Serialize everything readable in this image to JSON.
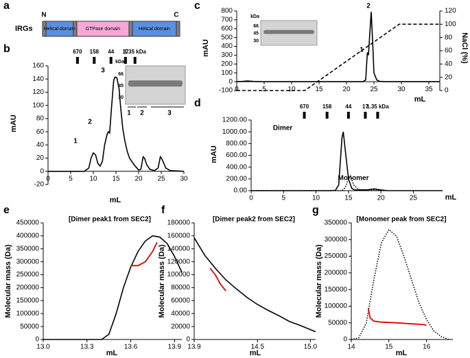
{
  "diagram": {
    "panel": "a",
    "label": "IRGs",
    "n_term": "N",
    "c_term": "C",
    "domains": [
      "Helical domain",
      "GTPase domain",
      "Helical domain"
    ]
  },
  "chart_data": [
    {
      "type": "line",
      "panel": "b",
      "xlabel": "mL",
      "ylabel": "mAU",
      "xlim": [
        0,
        30
      ],
      "xticks": [
        0,
        5,
        10,
        15,
        20,
        25,
        30
      ],
      "ylim": [
        -20,
        160
      ],
      "yticks": [
        -20,
        0,
        20,
        40,
        60,
        80,
        100,
        120,
        140,
        160
      ],
      "markers": [
        {
          "value": 6.5,
          "label": "670"
        },
        {
          "value": 10.2,
          "label": "158"
        },
        {
          "value": 13.9,
          "label": "44"
        },
        {
          "value": 17.1,
          "label": "17"
        },
        {
          "value": 19.2,
          "label": "1.35 kDa"
        }
      ],
      "annotations": [
        "1",
        "2",
        "3"
      ],
      "inset": {
        "unit": "kDa",
        "sizes": [
          66,
          45,
          30
        ],
        "lanes": [
          "1",
          "2",
          "3"
        ]
      },
      "series": [
        {
          "color": "#000000",
          "line_style": "solid",
          "x": [
            0,
            8,
            9,
            9.5,
            10,
            10.5,
            11,
            11.5,
            12,
            12.5,
            13,
            13.3,
            13.6,
            14,
            14.5,
            14.8,
            15.2,
            15.7,
            16,
            16.5,
            17,
            17.5,
            18,
            19,
            20,
            20.5,
            21,
            21.3,
            21.8,
            22.5,
            23.5,
            24.3,
            24.8,
            25.2,
            26,
            27,
            30
          ],
          "values": [
            0,
            0,
            5,
            20,
            28,
            25,
            12,
            8,
            15,
            40,
            55,
            60,
            58,
            95,
            138,
            143,
            142,
            125,
            100,
            65,
            45,
            30,
            20,
            10,
            2,
            3,
            22,
            20,
            10,
            3,
            1,
            5,
            22,
            18,
            5,
            1,
            0
          ]
        }
      ]
    },
    {
      "type": "line",
      "panel": "c",
      "xlabel": "mL",
      "ylabel": "mAU",
      "y2label": "NaCl (%)",
      "xlim": [
        0,
        37
      ],
      "xticks": [
        0,
        5,
        10,
        15,
        20,
        25,
        30,
        35
      ],
      "ylim": [
        -100,
        800
      ],
      "yticks": [
        -100,
        0,
        100,
        200,
        300,
        400,
        500,
        600,
        700,
        800
      ],
      "y2lim": [
        0,
        120
      ],
      "y2ticks": [
        0,
        20,
        40,
        60,
        80,
        100,
        120
      ],
      "annotations": [
        "1",
        "2"
      ],
      "inset": {
        "unit": "kDa",
        "sizes": [
          66,
          45,
          30
        ]
      },
      "series": [
        {
          "color": "#000000",
          "line_style": "solid",
          "x": [
            0,
            1,
            2,
            3,
            5,
            10,
            20,
            23,
            23.5,
            23.8,
            24,
            24.2,
            24.5,
            24.8,
            25,
            25.5,
            26,
            27,
            37
          ],
          "values": [
            0,
            3,
            8,
            3,
            0,
            0,
            0,
            0,
            20,
            330,
            300,
            500,
            790,
            400,
            100,
            20,
            5,
            0,
            0
          ]
        },
        {
          "color": "#000000",
          "line_style": "dashed",
          "axis": "y2",
          "x": [
            0,
            12.4,
            29.6,
            37
          ],
          "values": [
            0,
            0,
            100,
            100
          ]
        }
      ]
    },
    {
      "type": "line",
      "panel": "d",
      "xlabel": "mL",
      "ylabel": "mAU",
      "xlim": [
        0,
        29.5
      ],
      "xticks": [
        0,
        5,
        10,
        15,
        20,
        25
      ],
      "ylim": [
        0,
        1200
      ],
      "yticks": [
        {
          "value": 0,
          "label": "0.00"
        },
        {
          "value": 200,
          "label": "200.00"
        },
        {
          "value": 400,
          "label": "400.00"
        },
        {
          "value": 600,
          "label": "600.00"
        },
        {
          "value": 800,
          "label": "800.00"
        },
        {
          "value": 1000,
          "label": "1000.00"
        },
        {
          "value": 1200,
          "label": "1200.00"
        }
      ],
      "markers": [
        {
          "value": 8.2,
          "label": "670"
        },
        {
          "value": 11.7,
          "label": "158"
        },
        {
          "value": 15,
          "label": "44"
        },
        {
          "value": 17.6,
          "label": "17"
        },
        {
          "value": 19.5,
          "label": "1.35 kDa"
        }
      ],
      "annotations": [
        "Dimer",
        "Monomer"
      ],
      "series": [
        {
          "color": "#000000",
          "line_style": "solid",
          "x": [
            0,
            12,
            13,
            13.5,
            14,
            14.2,
            14.5,
            15,
            15.5,
            16,
            18,
            19,
            19.5,
            21,
            29.5
          ],
          "values": [
            0,
            0,
            5,
            100,
            900,
            1000,
            700,
            200,
            40,
            10,
            15,
            30,
            20,
            0,
            0
          ]
        },
        {
          "color": "#000000",
          "line_style": "dotted",
          "x": [
            0,
            14,
            14.5,
            15,
            15.3,
            15.8,
            16.5,
            18,
            19,
            20,
            21
          ],
          "values": [
            0,
            0,
            50,
            200,
            250,
            100,
            20,
            10,
            15,
            5,
            0
          ]
        }
      ]
    },
    {
      "type": "line",
      "panel": "e",
      "title": "[Dimer peak1 from SEC2]",
      "xlabel": "mL",
      "ylabel": "Molecular mass (Da)",
      "xlim": [
        13.0,
        13.95
      ],
      "xticks": [
        {
          "value": 13.0,
          "label": "13.0"
        },
        {
          "value": 13.3,
          "label": "13.3"
        },
        {
          "value": 13.6,
          "label": "13.6"
        },
        {
          "value": 13.9,
          "label": "13.9"
        }
      ],
      "ylim": [
        0,
        450000
      ],
      "yticks": [
        0,
        50000,
        100000,
        150000,
        200000,
        250000,
        300000,
        350000,
        400000,
        450000
      ],
      "series": [
        {
          "color": "#000000",
          "line_style": "solid",
          "x": [
            13.0,
            13.4,
            13.45,
            13.5,
            13.55,
            13.6,
            13.65,
            13.7,
            13.75,
            13.8,
            13.85,
            13.9,
            13.95
          ],
          "values": [
            0,
            0,
            20000,
            100000,
            200000,
            280000,
            340000,
            380000,
            400000,
            395000,
            370000,
            320000,
            260000
          ]
        },
        {
          "color": "#e00000",
          "line_style": "solid",
          "x": [
            13.6,
            13.65,
            13.7,
            13.75,
            13.78
          ],
          "values": [
            285000,
            285000,
            300000,
            340000,
            375000
          ]
        }
      ]
    },
    {
      "type": "line",
      "panel": "f",
      "title": "[Dimer peak2 from SEC2]",
      "xlabel": "mL",
      "ylabel": "Molecular mass (Da)",
      "xlim": [
        13.9,
        15.05
      ],
      "xticks": [
        13.9,
        14.5,
        {
          "value": 15.0,
          "label": "15.0"
        }
      ],
      "ylim": [
        0,
        180000
      ],
      "yticks": [
        0,
        20000,
        40000,
        60000,
        80000,
        100000,
        120000,
        140000,
        160000,
        180000
      ],
      "series": [
        {
          "color": "#000000",
          "line_style": "solid",
          "x": [
            13.9,
            14.0,
            14.1,
            14.2,
            14.3,
            14.4,
            14.5,
            14.6,
            14.7,
            14.8,
            14.9,
            15.05
          ],
          "values": [
            157000,
            130000,
            110000,
            92000,
            78000,
            65000,
            54000,
            45000,
            37000,
            28000,
            22000,
            12000
          ]
        },
        {
          "color": "#e00000",
          "line_style": "solid",
          "x": [
            14.05,
            14.1,
            14.15,
            14.2
          ],
          "values": [
            110000,
            100000,
            85000,
            75000
          ]
        }
      ]
    },
    {
      "type": "line",
      "panel": "g",
      "title": "[Monomer peak from SEC2]",
      "xlabel": "mL",
      "ylabel": "Molecular mass (Da)",
      "xlim": [
        14,
        16.7
      ],
      "xticks": [
        14,
        15,
        16
      ],
      "ylim": [
        0,
        350000
      ],
      "yticks": [
        0,
        50000,
        100000,
        150000,
        200000,
        250000,
        300000,
        350000
      ],
      "series": [
        {
          "color": "#000000",
          "line_style": "dotted",
          "x": [
            14,
            14.2,
            14.4,
            14.6,
            14.8,
            15,
            15.2,
            15.4,
            15.6,
            15.8,
            16,
            16.2,
            16.4,
            16.6
          ],
          "values": [
            0,
            5000,
            50000,
            180000,
            290000,
            330000,
            310000,
            250000,
            180000,
            110000,
            60000,
            25000,
            8000,
            0
          ]
        },
        {
          "color": "#e00000",
          "line_style": "solid",
          "x": [
            14.45,
            14.5,
            14.6,
            14.8,
            15.2,
            15.6,
            15.9,
            16
          ],
          "values": [
            95000,
            65000,
            55000,
            52000,
            50000,
            47000,
            45000,
            43000
          ]
        }
      ]
    }
  ]
}
